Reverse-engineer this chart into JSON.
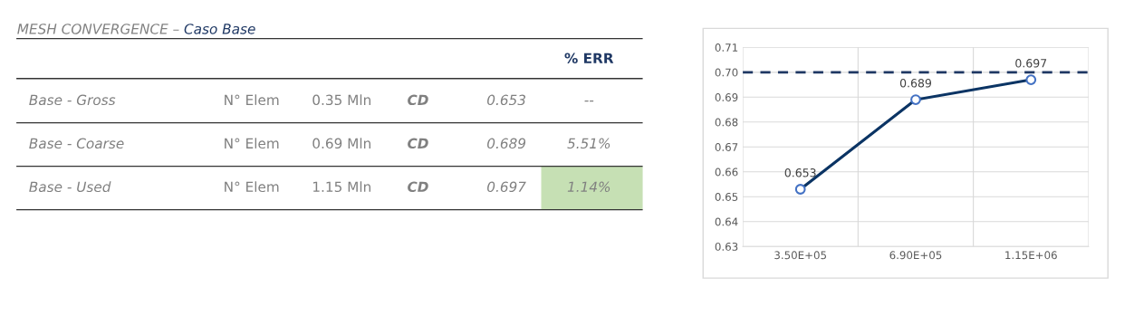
{
  "chart_data": [
    {
      "type": "other",
      "title": "MESH CONVERGENCE –",
      "subtitle": "Caso Base",
      "annotations": [
        "% ERR",
        "Base - Gross",
        "N° Elem",
        "0.35 Mln",
        "CD",
        "0.653",
        "--",
        "Base - Coarse",
        "N° Elem",
        "0.69 Mln",
        "CD",
        "0.689",
        "5.51%",
        "Base - Used",
        "N° Elem",
        "1.15 Mln",
        "CD",
        "0.697",
        "1.14%"
      ]
    },
    {
      "type": "line",
      "categories": [
        "3.50E+05",
        "6.90E+05",
        "1.15E+06"
      ],
      "series": [
        {
          "color": "#0b3464",
          "values": [
            0.653,
            0.689,
            0.697
          ]
        }
      ],
      "marker": "circle",
      "line_style": "solid",
      "data_labels": true,
      "ylim": [
        0.63,
        0.71
      ],
      "yticks": [
        {
          "value": 0.63,
          "label": "0.63"
        },
        {
          "value": 0.64,
          "label": "0.64"
        },
        {
          "value": 0.65,
          "label": "0.65"
        },
        {
          "value": 0.66,
          "label": "0.66"
        },
        {
          "value": 0.67,
          "label": "0.67"
        },
        {
          "value": 0.68,
          "label": "0.68"
        },
        {
          "value": 0.69,
          "label": "0.69"
        },
        {
          "value": 0.7,
          "label": "0.70"
        },
        {
          "value": 0.71,
          "label": "0.71"
        }
      ],
      "grid": true,
      "ref_lines": [
        {
          "axis": "y",
          "value": 0.7,
          "color": "#1f3864",
          "line_style": "dashed"
        }
      ]
    }
  ]
}
